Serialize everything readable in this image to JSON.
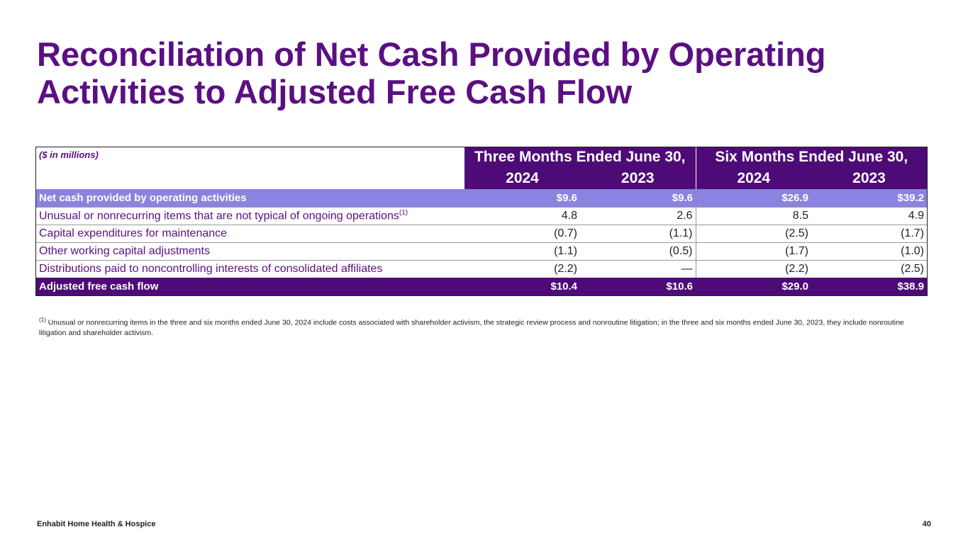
{
  "title": "Reconciliation of Net Cash Provided by Operating Activities to Adjusted Free Cash Flow",
  "table": {
    "units": "($ in millions)",
    "groups": [
      "Three Months Ended June 30,",
      "Six Months Ended June 30,"
    ],
    "years": [
      "2024",
      "2023",
      "2024",
      "2023"
    ],
    "net_cash": {
      "label": "Net cash provided by operating activities",
      "values": [
        "$9.6",
        "$9.6",
        "$26.9",
        "$39.2"
      ]
    },
    "rows": [
      {
        "label": "Unusual or nonrecurring items that are not typical of ongoing operations",
        "note": "(1)",
        "values": [
          "4.8",
          "2.6",
          "8.5",
          "4.9"
        ]
      },
      {
        "label": "Capital expenditures for maintenance",
        "note": "",
        "values": [
          "(0.7)",
          "(1.1)",
          "(2.5)",
          "(1.7)"
        ]
      },
      {
        "label": "Other working capital adjustments",
        "note": "",
        "values": [
          "(1.1)",
          "(0.5)",
          "(1.7)",
          "(1.0)"
        ]
      },
      {
        "label": "Distributions paid to noncontrolling interests of consolidated affiliates",
        "note": "",
        "values": [
          "(2.2)",
          "—",
          "(2.2)",
          "(2.5)"
        ]
      }
    ],
    "adjusted": {
      "label": "Adjusted free cash flow",
      "values": [
        "$10.4",
        "$10.6",
        "$29.0",
        "$38.9"
      ]
    }
  },
  "footnote": {
    "marker": "(1)",
    "text": "Unusual or nonrecurring items in the three and six months ended June 30, 2024 include costs associated with shareholder activism, the strategic review process and nonroutine litigation; in the three and six months ended June 30, 2023, they include nonroutine litigation and shareholder activism."
  },
  "footer": {
    "company": "Enhabit Home Health & Hospice",
    "page": "40"
  }
}
